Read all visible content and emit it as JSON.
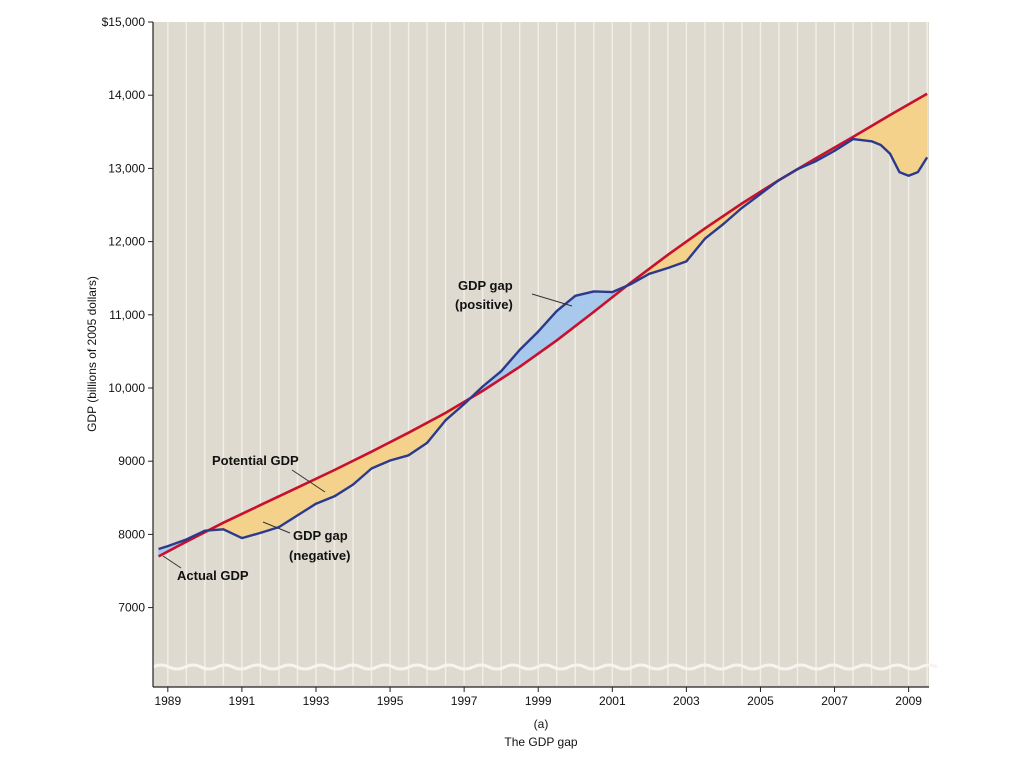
{
  "chart_data": {
    "type": "line",
    "ylabel": "GDP (billions of 2005 dollars)",
    "ylim": [
      6000,
      15000
    ],
    "xlim": [
      1988.6,
      2009.55
    ],
    "y_ticks": [
      {
        "value": 15000,
        "label": "$15,000"
      },
      {
        "value": 14000,
        "label": "14,000"
      },
      {
        "value": 13000,
        "label": "13,000"
      },
      {
        "value": 12000,
        "label": "12,000"
      },
      {
        "value": 11000,
        "label": "11,000"
      },
      {
        "value": 10000,
        "label": "10,000"
      },
      {
        "value": 9000,
        "label": "9000"
      },
      {
        "value": 8000,
        "label": "8000"
      },
      {
        "value": 7000,
        "label": "7000"
      }
    ],
    "x_ticks": [
      {
        "value": 1989,
        "label": "1989"
      },
      {
        "value": 1991,
        "label": "1991"
      },
      {
        "value": 1993,
        "label": "1993"
      },
      {
        "value": 1995,
        "label": "1995"
      },
      {
        "value": 1997,
        "label": "1997"
      },
      {
        "value": 1999,
        "label": "1999"
      },
      {
        "value": 2001,
        "label": "2001"
      },
      {
        "value": 2003,
        "label": "2003"
      },
      {
        "value": 2005,
        "label": "2005"
      },
      {
        "value": 2007,
        "label": "2007"
      },
      {
        "value": 2009,
        "label": "2009"
      }
    ],
    "series": [
      {
        "name": "Potential GDP",
        "color": "#c8102e",
        "points": [
          [
            1988.75,
            7700
          ],
          [
            1989.5,
            7900
          ],
          [
            1990.5,
            8160
          ],
          [
            1991.5,
            8400
          ],
          [
            1992.5,
            8640
          ],
          [
            1993.5,
            8880
          ],
          [
            1994.5,
            9130
          ],
          [
            1995.5,
            9390
          ],
          [
            1996.5,
            9660
          ],
          [
            1997.5,
            9960
          ],
          [
            1998.5,
            10290
          ],
          [
            1999.5,
            10650
          ],
          [
            2000.5,
            11040
          ],
          [
            2001.5,
            11440
          ],
          [
            2002.5,
            11820
          ],
          [
            2003.5,
            12180
          ],
          [
            2004.5,
            12520
          ],
          [
            2005.5,
            12840
          ],
          [
            2006.5,
            13140
          ],
          [
            2007.5,
            13430
          ],
          [
            2008.5,
            13730
          ],
          [
            2009.5,
            14020
          ]
        ]
      },
      {
        "name": "Actual GDP",
        "color": "#2b3a8c",
        "points": [
          [
            1988.75,
            7800
          ],
          [
            1989.0,
            7840
          ],
          [
            1989.5,
            7930
          ],
          [
            1990.0,
            8050
          ],
          [
            1990.5,
            8070
          ],
          [
            1991.0,
            7950
          ],
          [
            1991.5,
            8020
          ],
          [
            1992.0,
            8100
          ],
          [
            1992.5,
            8260
          ],
          [
            1993.0,
            8420
          ],
          [
            1993.5,
            8520
          ],
          [
            1994.0,
            8680
          ],
          [
            1994.5,
            8900
          ],
          [
            1995.0,
            9010
          ],
          [
            1995.5,
            9080
          ],
          [
            1996.0,
            9250
          ],
          [
            1996.5,
            9560
          ],
          [
            1997.0,
            9780
          ],
          [
            1997.5,
            10020
          ],
          [
            1998.0,
            10230
          ],
          [
            1998.5,
            10520
          ],
          [
            1999.0,
            10770
          ],
          [
            1999.5,
            11050
          ],
          [
            2000.0,
            11260
          ],
          [
            2000.5,
            11320
          ],
          [
            2001.0,
            11310
          ],
          [
            2001.5,
            11420
          ],
          [
            2002.0,
            11560
          ],
          [
            2002.5,
            11640
          ],
          [
            2003.0,
            11730
          ],
          [
            2003.5,
            12040
          ],
          [
            2004.0,
            12240
          ],
          [
            2004.5,
            12460
          ],
          [
            2005.0,
            12650
          ],
          [
            2005.5,
            12840
          ],
          [
            2006.0,
            12990
          ],
          [
            2006.5,
            13100
          ],
          [
            2007.0,
            13240
          ],
          [
            2007.5,
            13400
          ],
          [
            2008.0,
            13370
          ],
          [
            2008.25,
            13320
          ],
          [
            2008.5,
            13200
          ],
          [
            2008.75,
            12950
          ],
          [
            2009.0,
            12900
          ],
          [
            2009.25,
            12950
          ],
          [
            2009.5,
            13150
          ]
        ]
      }
    ],
    "colors": {
      "plot_background": "#dedad0",
      "gridline": "#f2efe8",
      "negative_gap_fill": "#f4d28c",
      "positive_gap_fill": "#a8c8ec",
      "potential_line": "#c8102e",
      "actual_line": "#2b3a8c"
    },
    "annotations": {
      "potential_label": "Potential GDP",
      "actual_label": "Actual GDP",
      "negative_gap_line1": "GDP gap",
      "negative_gap_line2": "(negative)",
      "positive_gap_line1": "GDP gap",
      "positive_gap_line2": "(positive)"
    },
    "panel_letter": "(a)",
    "caption": "The GDP gap",
    "grid": true,
    "legend": "none"
  }
}
